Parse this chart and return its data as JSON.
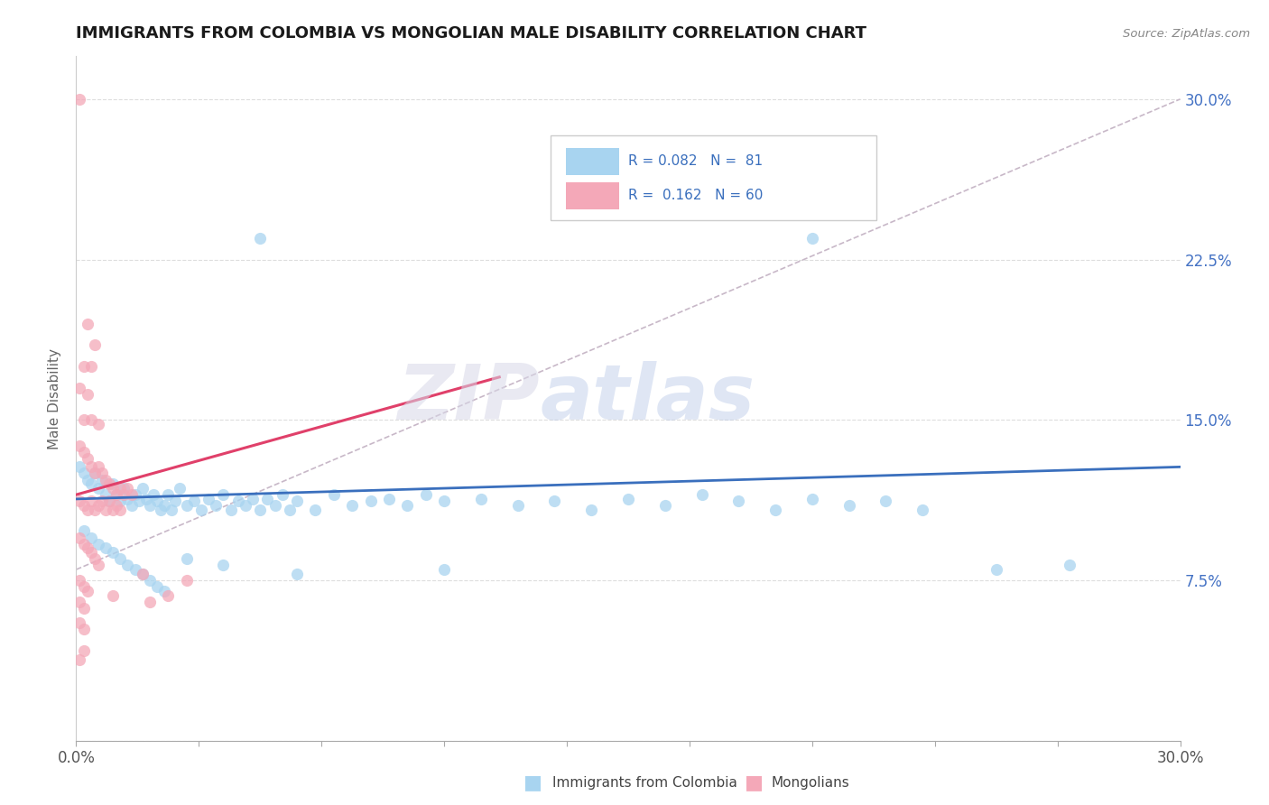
{
  "title": "IMMIGRANTS FROM COLOMBIA VS MONGOLIAN MALE DISABILITY CORRELATION CHART",
  "source": "Source: ZipAtlas.com",
  "ylabel": "Male Disability",
  "xlim": [
    0.0,
    0.3
  ],
  "ylim": [
    0.0,
    0.32
  ],
  "watermark_zip": "ZIP",
  "watermark_atlas": "atlas",
  "color_blue": "#a8d4f0",
  "color_pink": "#f4a8b8",
  "trendline_blue": "#3a6fbd",
  "trendline_pink": "#e0406a",
  "trendline_gray_color": "#c8b8c8",
  "blue_scatter": [
    [
      0.001,
      0.128
    ],
    [
      0.002,
      0.125
    ],
    [
      0.003,
      0.122
    ],
    [
      0.004,
      0.12
    ],
    [
      0.005,
      0.125
    ],
    [
      0.006,
      0.118
    ],
    [
      0.007,
      0.122
    ],
    [
      0.008,
      0.115
    ],
    [
      0.009,
      0.112
    ],
    [
      0.01,
      0.12
    ],
    [
      0.011,
      0.115
    ],
    [
      0.012,
      0.112
    ],
    [
      0.013,
      0.118
    ],
    [
      0.014,
      0.113
    ],
    [
      0.015,
      0.11
    ],
    [
      0.016,
      0.115
    ],
    [
      0.017,
      0.112
    ],
    [
      0.018,
      0.118
    ],
    [
      0.019,
      0.113
    ],
    [
      0.02,
      0.11
    ],
    [
      0.021,
      0.115
    ],
    [
      0.022,
      0.112
    ],
    [
      0.023,
      0.108
    ],
    [
      0.024,
      0.11
    ],
    [
      0.025,
      0.115
    ],
    [
      0.026,
      0.108
    ],
    [
      0.027,
      0.112
    ],
    [
      0.028,
      0.118
    ],
    [
      0.03,
      0.11
    ],
    [
      0.032,
      0.112
    ],
    [
      0.034,
      0.108
    ],
    [
      0.036,
      0.113
    ],
    [
      0.038,
      0.11
    ],
    [
      0.04,
      0.115
    ],
    [
      0.042,
      0.108
    ],
    [
      0.044,
      0.112
    ],
    [
      0.046,
      0.11
    ],
    [
      0.048,
      0.113
    ],
    [
      0.05,
      0.108
    ],
    [
      0.052,
      0.113
    ],
    [
      0.054,
      0.11
    ],
    [
      0.056,
      0.115
    ],
    [
      0.058,
      0.108
    ],
    [
      0.06,
      0.112
    ],
    [
      0.065,
      0.108
    ],
    [
      0.07,
      0.115
    ],
    [
      0.075,
      0.11
    ],
    [
      0.08,
      0.112
    ],
    [
      0.085,
      0.113
    ],
    [
      0.09,
      0.11
    ],
    [
      0.095,
      0.115
    ],
    [
      0.1,
      0.112
    ],
    [
      0.11,
      0.113
    ],
    [
      0.12,
      0.11
    ],
    [
      0.13,
      0.112
    ],
    [
      0.14,
      0.108
    ],
    [
      0.15,
      0.113
    ],
    [
      0.16,
      0.11
    ],
    [
      0.17,
      0.115
    ],
    [
      0.18,
      0.112
    ],
    [
      0.19,
      0.108
    ],
    [
      0.2,
      0.113
    ],
    [
      0.21,
      0.11
    ],
    [
      0.22,
      0.112
    ],
    [
      0.23,
      0.108
    ],
    [
      0.05,
      0.235
    ],
    [
      0.2,
      0.235
    ],
    [
      0.002,
      0.098
    ],
    [
      0.004,
      0.095
    ],
    [
      0.006,
      0.092
    ],
    [
      0.008,
      0.09
    ],
    [
      0.01,
      0.088
    ],
    [
      0.012,
      0.085
    ],
    [
      0.014,
      0.082
    ],
    [
      0.016,
      0.08
    ],
    [
      0.018,
      0.078
    ],
    [
      0.02,
      0.075
    ],
    [
      0.022,
      0.072
    ],
    [
      0.024,
      0.07
    ],
    [
      0.03,
      0.085
    ],
    [
      0.04,
      0.082
    ],
    [
      0.06,
      0.078
    ],
    [
      0.1,
      0.08
    ],
    [
      0.25,
      0.08
    ],
    [
      0.27,
      0.082
    ]
  ],
  "pink_scatter": [
    [
      0.001,
      0.3
    ],
    [
      0.002,
      0.175
    ],
    [
      0.004,
      0.175
    ],
    [
      0.003,
      0.195
    ],
    [
      0.005,
      0.185
    ],
    [
      0.001,
      0.165
    ],
    [
      0.003,
      0.162
    ],
    [
      0.002,
      0.15
    ],
    [
      0.004,
      0.15
    ],
    [
      0.006,
      0.148
    ],
    [
      0.001,
      0.138
    ],
    [
      0.002,
      0.135
    ],
    [
      0.003,
      0.132
    ],
    [
      0.004,
      0.128
    ],
    [
      0.005,
      0.125
    ],
    [
      0.006,
      0.128
    ],
    [
      0.007,
      0.125
    ],
    [
      0.008,
      0.122
    ],
    [
      0.009,
      0.12
    ],
    [
      0.01,
      0.118
    ],
    [
      0.011,
      0.115
    ],
    [
      0.012,
      0.118
    ],
    [
      0.013,
      0.115
    ],
    [
      0.014,
      0.118
    ],
    [
      0.015,
      0.115
    ],
    [
      0.001,
      0.112
    ],
    [
      0.002,
      0.11
    ],
    [
      0.003,
      0.108
    ],
    [
      0.004,
      0.112
    ],
    [
      0.005,
      0.108
    ],
    [
      0.006,
      0.11
    ],
    [
      0.007,
      0.112
    ],
    [
      0.008,
      0.108
    ],
    [
      0.009,
      0.112
    ],
    [
      0.01,
      0.108
    ],
    [
      0.011,
      0.11
    ],
    [
      0.012,
      0.108
    ],
    [
      0.001,
      0.095
    ],
    [
      0.002,
      0.092
    ],
    [
      0.003,
      0.09
    ],
    [
      0.004,
      0.088
    ],
    [
      0.005,
      0.085
    ],
    [
      0.006,
      0.082
    ],
    [
      0.001,
      0.075
    ],
    [
      0.002,
      0.072
    ],
    [
      0.003,
      0.07
    ],
    [
      0.001,
      0.065
    ],
    [
      0.002,
      0.062
    ],
    [
      0.001,
      0.055
    ],
    [
      0.002,
      0.052
    ],
    [
      0.018,
      0.078
    ],
    [
      0.03,
      0.075
    ],
    [
      0.002,
      0.042
    ],
    [
      0.001,
      0.038
    ],
    [
      0.025,
      0.068
    ],
    [
      0.01,
      0.068
    ],
    [
      0.02,
      0.065
    ]
  ]
}
